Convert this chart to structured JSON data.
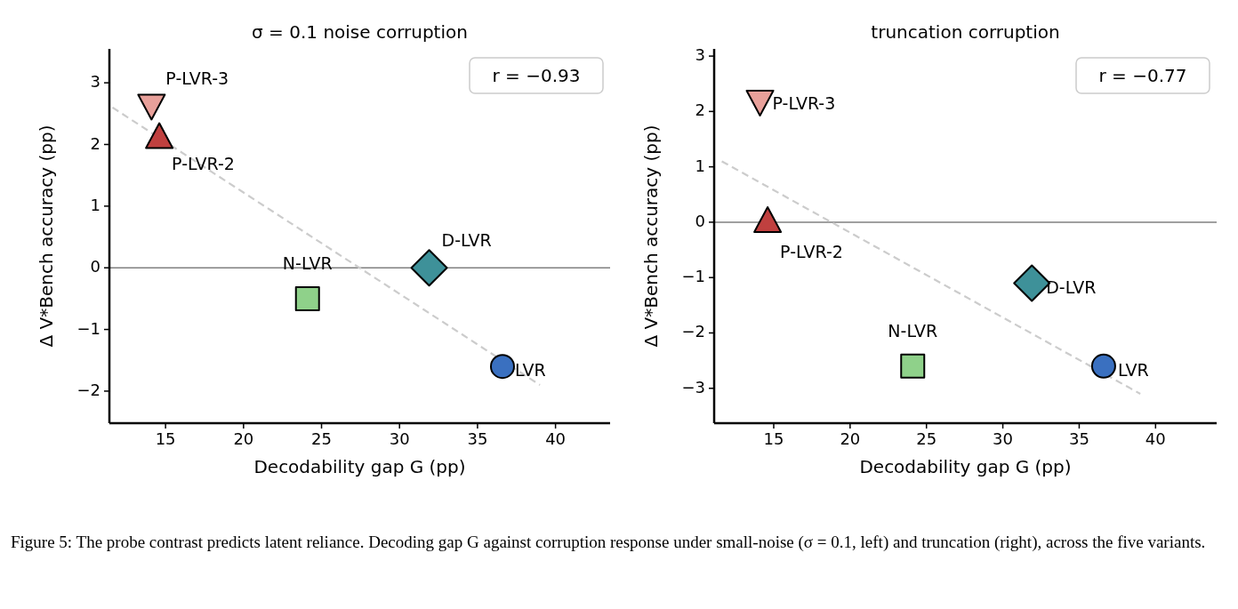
{
  "chart_data": [
    {
      "type": "scatter",
      "title": "σ = 0.1 noise corruption",
      "xlabel": "Decodability gap G (pp)",
      "ylabel": "Δ V*Bench accuracy (pp)",
      "xlim": [
        11.4,
        43.5
      ],
      "ylim": [
        -2.52,
        3.55
      ],
      "xticks": [
        15,
        20,
        25,
        30,
        35,
        40
      ],
      "yticks": [
        -2,
        -1,
        0,
        1,
        2,
        3
      ],
      "grid": false,
      "ref_lines": [
        {
          "axis": "y",
          "value": 0,
          "color": "#808080"
        }
      ],
      "annotations": [
        "r = −0.93",
        "Figure 5: The probe contrast predicts latent reliance. Decoding gap G against corruption response under small-noise (σ = 0.1, left) and truncation (right), across the five variants."
      ],
      "series": [
        {
          "name": "P-LVR-3",
          "color": "#e8a09a",
          "marker": "triangle_down",
          "x": [
            14.1
          ],
          "values": [
            2.65
          ]
        },
        {
          "name": "P-LVR-2",
          "color": "#c0403f",
          "marker": "triangle",
          "x": [
            14.6
          ],
          "values": [
            2.1
          ]
        },
        {
          "name": "N-LVR",
          "color": "#8fd18a",
          "marker": "square",
          "x": [
            24.1
          ],
          "values": [
            -0.5
          ]
        },
        {
          "name": "D-LVR",
          "color": "#3e9199",
          "marker": "diamond",
          "x": [
            31.9
          ],
          "values": [
            0.0
          ]
        },
        {
          "name": "LVR",
          "color": "#3a70c0",
          "marker": "circle",
          "x": [
            36.6
          ],
          "values": [
            -1.6
          ]
        },
        {
          "type": "line",
          "color": "#cccccc",
          "line_style": "dashed",
          "x": [
            11.6,
            39.0
          ],
          "values": [
            2.6,
            -1.9
          ]
        }
      ]
    },
    {
      "type": "scatter",
      "title": "truncation corruption",
      "xlabel": "Decodability gap G (pp)",
      "ylabel": "Δ V*Bench accuracy (pp)",
      "xlim": [
        11.1,
        44.0
      ],
      "ylim": [
        -3.63,
        3.13
      ],
      "xticks": [
        15,
        20,
        25,
        30,
        35,
        40
      ],
      "yticks": [
        -3,
        -2,
        -1,
        0,
        1,
        2,
        3
      ],
      "grid": false,
      "ref_lines": [
        {
          "axis": "y",
          "value": 0,
          "color": "#808080"
        }
      ],
      "annotations": [
        "r = −0.77"
      ],
      "series": [
        {
          "name": "P-LVR-3",
          "color": "#e8a09a",
          "marker": "triangle_down",
          "x": [
            14.1
          ],
          "values": [
            2.2
          ]
        },
        {
          "name": "P-LVR-2",
          "color": "#c0403f",
          "marker": "triangle",
          "x": [
            14.6
          ],
          "values": [
            0.0
          ]
        },
        {
          "name": "N-LVR",
          "color": "#8fd18a",
          "marker": "square",
          "x": [
            24.1
          ],
          "values": [
            -2.6
          ]
        },
        {
          "name": "D-LVR",
          "color": "#3e9199",
          "marker": "diamond",
          "x": [
            31.9
          ],
          "values": [
            -1.1
          ]
        },
        {
          "name": "LVR",
          "color": "#3a70c0",
          "marker": "circle",
          "x": [
            36.6
          ],
          "values": [
            -2.6
          ]
        },
        {
          "type": "line",
          "color": "#cccccc",
          "line_style": "dashed",
          "x": [
            11.6,
            39.0
          ],
          "values": [
            1.1,
            -3.1
          ]
        }
      ]
    }
  ]
}
